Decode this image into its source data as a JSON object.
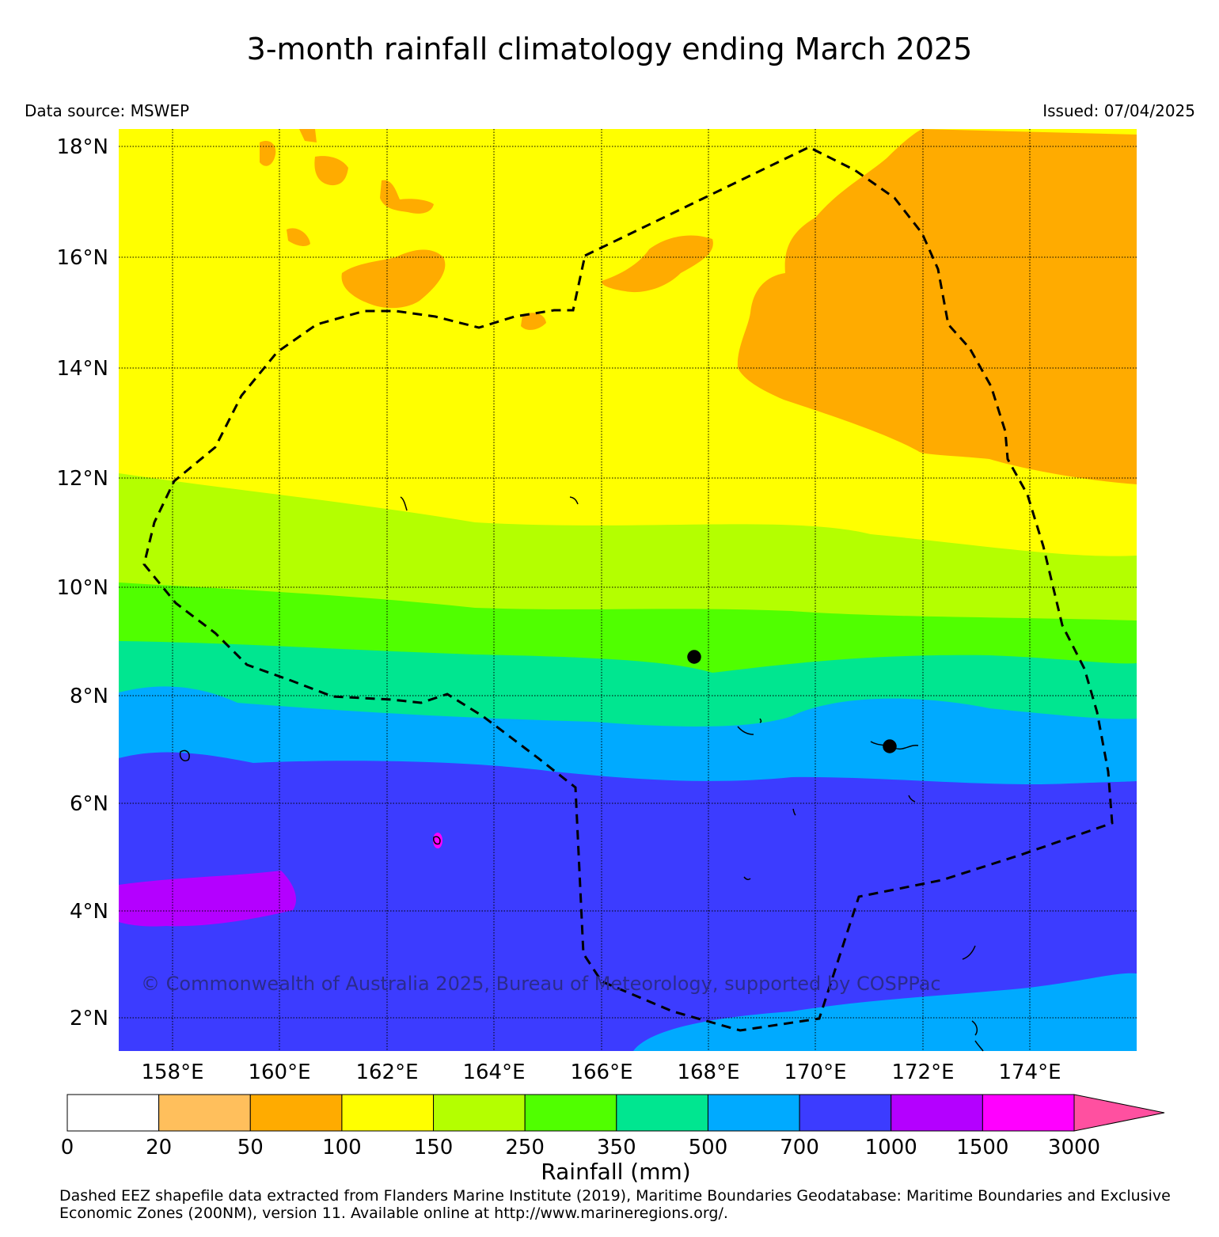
{
  "title": "3-month rainfall climatology ending March 2025",
  "data_source": "Data source: MSWEP",
  "issued": "Issued: 07/04/2025",
  "copyright": "© Commonwealth of Australia 2025, Bureau of Meteorology, supported by COSPPac",
  "lat_labels": [
    "18°N",
    "16°N",
    "14°N",
    "12°N",
    "10°N",
    "8°N",
    "6°N",
    "4°N",
    "2°N"
  ],
  "lon_labels": [
    "158°E",
    "160°E",
    "162°E",
    "164°E",
    "166°E",
    "168°E",
    "170°E",
    "172°E",
    "174°E"
  ],
  "colorbar": {
    "title": "Rainfall (mm)",
    "ticks": [
      "0",
      "20",
      "50",
      "100",
      "150",
      "250",
      "350",
      "500",
      "700",
      "1000",
      "1500",
      "3000"
    ],
    "colors": [
      "#ffffff",
      "#ffbf5c",
      "#ffab00",
      "#ffff00",
      "#b4ff00",
      "#50ff00",
      "#00e690",
      "#00aaff",
      "#3c3cff",
      "#b400ff",
      "#ff00ff",
      "#ff50a0"
    ]
  },
  "footnote": "Dashed EEZ shapefile data extracted from Flanders Marine Institute (2019), Maritime Boundaries Geodatabase: Maritime Boundaries and Exclusive Economic Zones (200NM), version 11. Available online at http://www.marineregions.org/."
}
